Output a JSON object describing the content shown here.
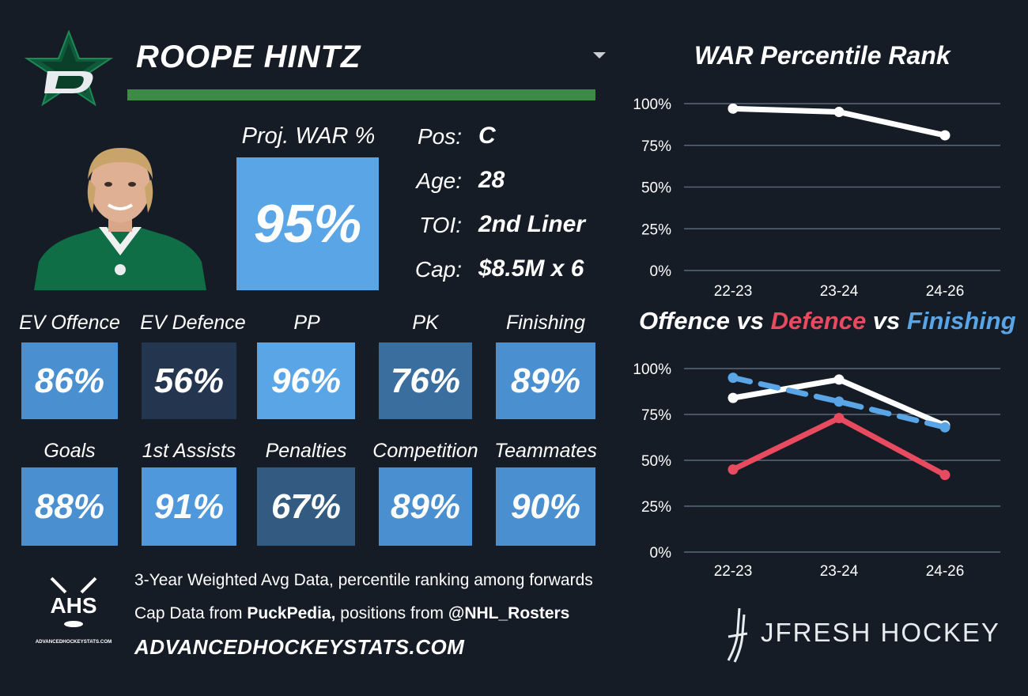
{
  "player": {
    "name": "ROOPE HINTZ",
    "bar_text": "ROOPE HINTZ",
    "proj_war_label": "Proj. WAR %",
    "proj_war_value": "95%",
    "info": [
      {
        "label": "Pos:",
        "value": "C"
      },
      {
        "label": "Age:",
        "value": "28"
      },
      {
        "label": "TOI:",
        "value": "2nd Liner"
      },
      {
        "label": "Cap:",
        "value": "$8.5M x 6"
      }
    ]
  },
  "tiles": [
    {
      "label": "EV Offence",
      "value": "86%",
      "color": "#4a8fd0"
    },
    {
      "label": "EV Defence",
      "value": "56%",
      "color": "#24364f"
    },
    {
      "label": "PP",
      "value": "96%",
      "color": "#5aa5e6"
    },
    {
      "label": "PK",
      "value": "76%",
      "color": "#3a6e9e"
    },
    {
      "label": "Finishing",
      "value": "89%",
      "color": "#4a8fd0"
    },
    {
      "label": "Goals",
      "value": "88%",
      "color": "#4a8fd0"
    },
    {
      "label": "1st Assists",
      "value": "91%",
      "color": "#4f98db"
    },
    {
      "label": "Penalties",
      "value": "67%",
      "color": "#335a80"
    },
    {
      "label": "Competition",
      "value": "89%",
      "color": "#4a8fd0"
    },
    {
      "label": "Teammates",
      "value": "90%",
      "color": "#4a8fd0"
    }
  ],
  "footer": {
    "logo_text": "AHS",
    "logo_sub": "ADVANCEDHOCKEYSTATS.COM",
    "line1": "3-Year Weighted Avg Data, percentile ranking among forwards",
    "line2_pre": "Cap Data from ",
    "line2_src1": "PuckPedia,",
    "line2_mid": " positions from ",
    "line2_src2": "@NHL_Rosters",
    "url": "ADVANCEDHOCKEYSTATS.COM",
    "brand": "JFRESH HOCKEY"
  },
  "colors": {
    "background": "#161c26",
    "team_green": "#3c8a45",
    "offence": "#ffffff",
    "defence": "#e84a5f",
    "finishing": "#5aa5e6",
    "grid": "#5a6678"
  },
  "chart_data": [
    {
      "type": "line",
      "title": "WAR Percentile Rank",
      "categories": [
        "22-23",
        "23-24",
        "24-26"
      ],
      "series": [
        {
          "values": [
            97,
            95,
            81
          ],
          "color": "#ffffff"
        }
      ],
      "ylim": [
        0,
        100
      ],
      "yticks": [
        "0%",
        "25%",
        "50%",
        "75%",
        "100%"
      ],
      "grid": true
    },
    {
      "type": "line",
      "title_parts": [
        {
          "text": "Offence",
          "color": "#ffffff"
        },
        {
          "text": " vs ",
          "color": "#ffffff"
        },
        {
          "text": "Defence",
          "color": "#e84a5f"
        },
        {
          "text": " vs ",
          "color": "#ffffff"
        },
        {
          "text": "Finishing",
          "color": "#5aa5e6"
        }
      ],
      "categories": [
        "22-23",
        "23-24",
        "24-26"
      ],
      "series": [
        {
          "name": "Offence",
          "values": [
            84,
            94,
            69
          ],
          "color": "#ffffff",
          "dashed": false
        },
        {
          "name": "Defence",
          "values": [
            45,
            73,
            42
          ],
          "color": "#e84a5f",
          "dashed": false
        },
        {
          "name": "Finishing",
          "values": [
            95,
            82,
            68
          ],
          "color": "#5aa5e6",
          "dashed": true
        }
      ],
      "ylim": [
        0,
        100
      ],
      "yticks": [
        "0%",
        "25%",
        "50%",
        "75%",
        "100%"
      ],
      "grid": true
    }
  ]
}
